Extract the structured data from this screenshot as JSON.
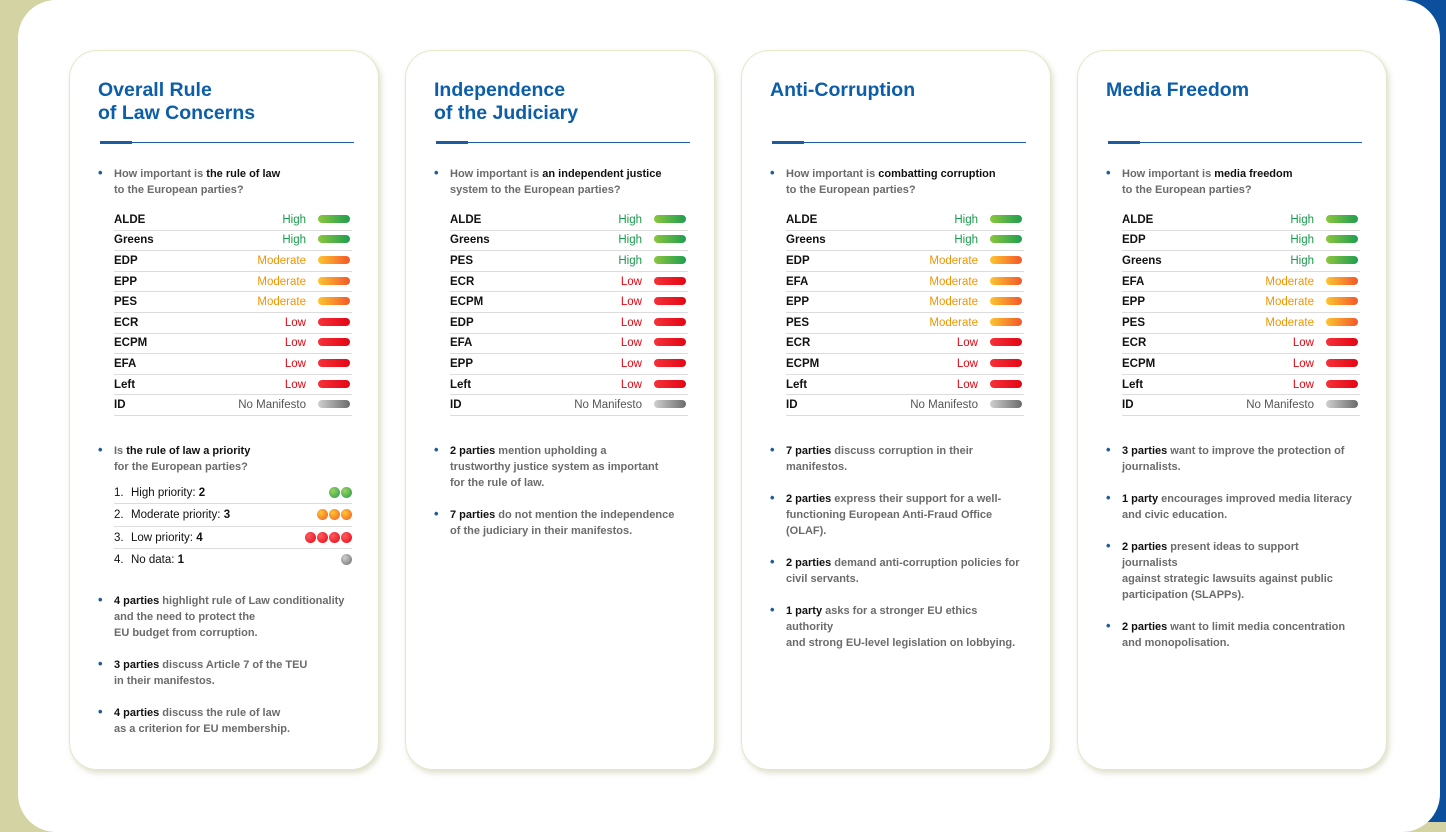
{
  "cards": [
    {
      "title": "Overall Rule\nof Law Concerns",
      "question_prefix": "How important is ",
      "question_bold": "the rule of law",
      "question_suffix": "to the European parties?",
      "parties": [
        {
          "name": "ALDE",
          "level": "High",
          "rating": "high"
        },
        {
          "name": "Greens",
          "level": "High",
          "rating": "high"
        },
        {
          "name": "EDP",
          "level": "Moderate",
          "rating": "moderate"
        },
        {
          "name": "EPP",
          "level": "Moderate",
          "rating": "moderate"
        },
        {
          "name": "PES",
          "level": "Moderate",
          "rating": "moderate"
        },
        {
          "name": "ECR",
          "level": "Low",
          "rating": "low"
        },
        {
          "name": "ECPM",
          "level": "Low",
          "rating": "low"
        },
        {
          "name": "EFA",
          "level": "Low",
          "rating": "low"
        },
        {
          "name": "Left",
          "level": "Low",
          "rating": "low"
        },
        {
          "name": "ID",
          "level": "No Manifesto",
          "rating": "none"
        }
      ],
      "priority_question": {
        "prefix": "Is ",
        "bold": "the rule of law a priority",
        "suffix": "for the European parties?"
      },
      "priorities": [
        {
          "num": "1.",
          "label": "High priority: ",
          "count": "2",
          "count_value": 2,
          "dot_color": "green"
        },
        {
          "num": "2.",
          "label": "Moderate priority: ",
          "count": "3",
          "count_value": 3,
          "dot_color": "orange"
        },
        {
          "num": "3.",
          "label": "Low priority: ",
          "count": "4",
          "count_value": 4,
          "dot_color": "red"
        },
        {
          "num": "4.",
          "label": "No data: ",
          "count": "1",
          "count_value": 1,
          "dot_color": "gray"
        }
      ],
      "facts": [
        {
          "bold": "4 parties",
          "text": " highlight rule of Law conditionality\nand the need to protect the\nEU budget from corruption."
        },
        {
          "bold": "3 parties",
          "text": " discuss Article 7 of the TEU\nin their manifestos."
        },
        {
          "bold": "4 parties",
          "text": " discuss the rule of law\nas a criterion for EU membership."
        }
      ]
    },
    {
      "title": "Independence\nof the Judiciary",
      "question_prefix": "How important is ",
      "question_bold": "an independent justice",
      "question_suffix": "system to the European parties?",
      "parties": [
        {
          "name": "ALDE",
          "level": "High",
          "rating": "high"
        },
        {
          "name": "Greens",
          "level": "High",
          "rating": "high"
        },
        {
          "name": "PES",
          "level": "High",
          "rating": "high"
        },
        {
          "name": "ECR",
          "level": "Low",
          "rating": "low"
        },
        {
          "name": "ECPM",
          "level": "Low",
          "rating": "low"
        },
        {
          "name": "EDP",
          "level": "Low",
          "rating": "low"
        },
        {
          "name": "EFA",
          "level": "Low",
          "rating": "low"
        },
        {
          "name": "EPP",
          "level": "Low",
          "rating": "low"
        },
        {
          "name": "Left",
          "level": "Low",
          "rating": "low"
        },
        {
          "name": "ID",
          "level": "No Manifesto",
          "rating": "none"
        }
      ],
      "facts": [
        {
          "bold": "2 parties",
          "text": " mention upholding a\ntrustworthy justice system as important\nfor the rule of law."
        },
        {
          "bold": "7 parties",
          "text": " do not mention the independence\nof the judiciary in their manifestos."
        }
      ]
    },
    {
      "title": "Anti-Corruption",
      "question_prefix": "How important is ",
      "question_bold": "combatting corruption",
      "question_suffix": "to the European parties?",
      "parties": [
        {
          "name": "ALDE",
          "level": "High",
          "rating": "high"
        },
        {
          "name": "Greens",
          "level": "High",
          "rating": "high"
        },
        {
          "name": "EDP",
          "level": "Moderate",
          "rating": "moderate"
        },
        {
          "name": "EFA",
          "level": "Moderate",
          "rating": "moderate"
        },
        {
          "name": "EPP",
          "level": "Moderate",
          "rating": "moderate"
        },
        {
          "name": "PES",
          "level": "Moderate",
          "rating": "moderate"
        },
        {
          "name": "ECR",
          "level": "Low",
          "rating": "low"
        },
        {
          "name": "ECPM",
          "level": "Low",
          "rating": "low"
        },
        {
          "name": "Left",
          "level": "Low",
          "rating": "low"
        },
        {
          "name": "ID",
          "level": "No Manifesto",
          "rating": "none"
        }
      ],
      "facts": [
        {
          "bold": "7 parties",
          "text": " discuss corruption in their\nmanifestos."
        },
        {
          "bold": "2 parties",
          "text": " express their support for a well-\nfunctioning European Anti-Fraud Office\n(OLAF)."
        },
        {
          "bold": "2 parties",
          "text": " demand anti-corruption policies for\ncivil servants."
        },
        {
          "bold": "1 party",
          "text": " asks for a stronger EU ethics authority\nand strong EU-level legislation on lobbying."
        }
      ]
    },
    {
      "title": "Media Freedom",
      "question_prefix": "How important is ",
      "question_bold": "media freedom",
      "question_suffix": "to the European parties?",
      "parties": [
        {
          "name": "ALDE",
          "level": "High",
          "rating": "high"
        },
        {
          "name": "EDP",
          "level": "High",
          "rating": "high"
        },
        {
          "name": "Greens",
          "level": "High",
          "rating": "high"
        },
        {
          "name": "EFA",
          "level": "Moderate",
          "rating": "moderate"
        },
        {
          "name": "EPP",
          "level": "Moderate",
          "rating": "moderate"
        },
        {
          "name": "PES",
          "level": "Moderate",
          "rating": "moderate"
        },
        {
          "name": "ECR",
          "level": "Low",
          "rating": "low"
        },
        {
          "name": "ECPM",
          "level": "Low",
          "rating": "low"
        },
        {
          "name": "Left",
          "level": "Low",
          "rating": "low"
        },
        {
          "name": "ID",
          "level": "No Manifesto",
          "rating": "none"
        }
      ],
      "facts": [
        {
          "bold": "3 parties",
          "text": " want to improve the protection of\njournalists."
        },
        {
          "bold": "1 party",
          "text": " encourages improved media literacy\nand civic education."
        },
        {
          "bold": "2 parties",
          "text": " present ideas to support journalists\nagainst strategic lawsuits against public\nparticipation (SLAPPs)."
        },
        {
          "bold": "2 parties",
          "text": " want to limit media concentration\nand monopolisation."
        }
      ]
    }
  ],
  "colors": {
    "title_blue": "#0c5ea8",
    "high": "#1a9a4c",
    "moderate": "#f29400",
    "low": "#e30613",
    "none": "#555555",
    "background_olive": "#d3d3a3",
    "right_band_blue": "#0c4f9c"
  }
}
